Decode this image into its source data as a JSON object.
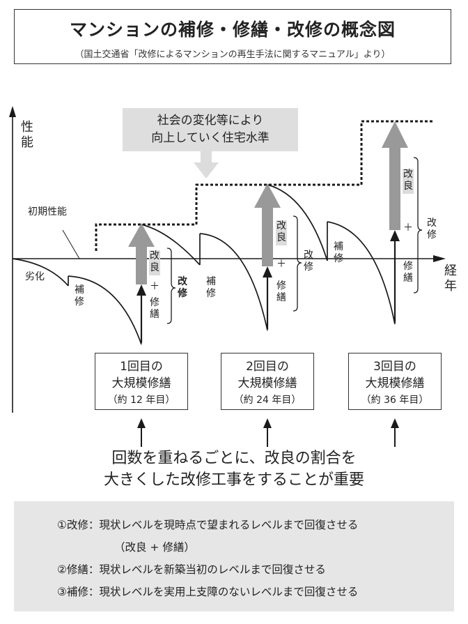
{
  "title": "マンションの補修・修繕・改修の概念図",
  "subtitle": "（国土交通省「改修によるマンションの再生手法に関するマニュアル」より）",
  "axis": {
    "y_label": "性能",
    "x_label": "経年"
  },
  "labels": {
    "initial_performance": "初期性能",
    "deterioration": "劣化",
    "repair": "補修",
    "improvement": "改良",
    "plus": "＋",
    "restoration": "修繕",
    "renovation": "改修"
  },
  "callout": {
    "line1": "社会の変化等により",
    "line2": "向上していく住宅水準"
  },
  "renovations": [
    {
      "line1": "1回目の",
      "line2": "大規模修繕",
      "note": "（約 12 年目）"
    },
    {
      "line1": "2回目の",
      "line2": "大規模修繕",
      "note": "（約 24 年目）"
    },
    {
      "line1": "3回目の",
      "line2": "大規模修繕",
      "note": "（約 36 年目）"
    }
  ],
  "conclusion": {
    "line1": "回数を重ねるごとに、改良の割合を",
    "line2": "大きくした改修工事をすることが重要"
  },
  "definitions": [
    "①改修：現状レベルを現時点で望まれるレベルまで回復させる",
    "（改良 + 修繕）",
    "②修繕：現状レベルを新築当初のレベルまで回復させる",
    "③補修：現状レベルを実用上支障のないレベルまで回復させる"
  ],
  "colors": {
    "line": "#1a1a1a",
    "arrow_gray": "#999999",
    "box_gray": "#dedede",
    "panel_gray": "#e6e6e6"
  }
}
